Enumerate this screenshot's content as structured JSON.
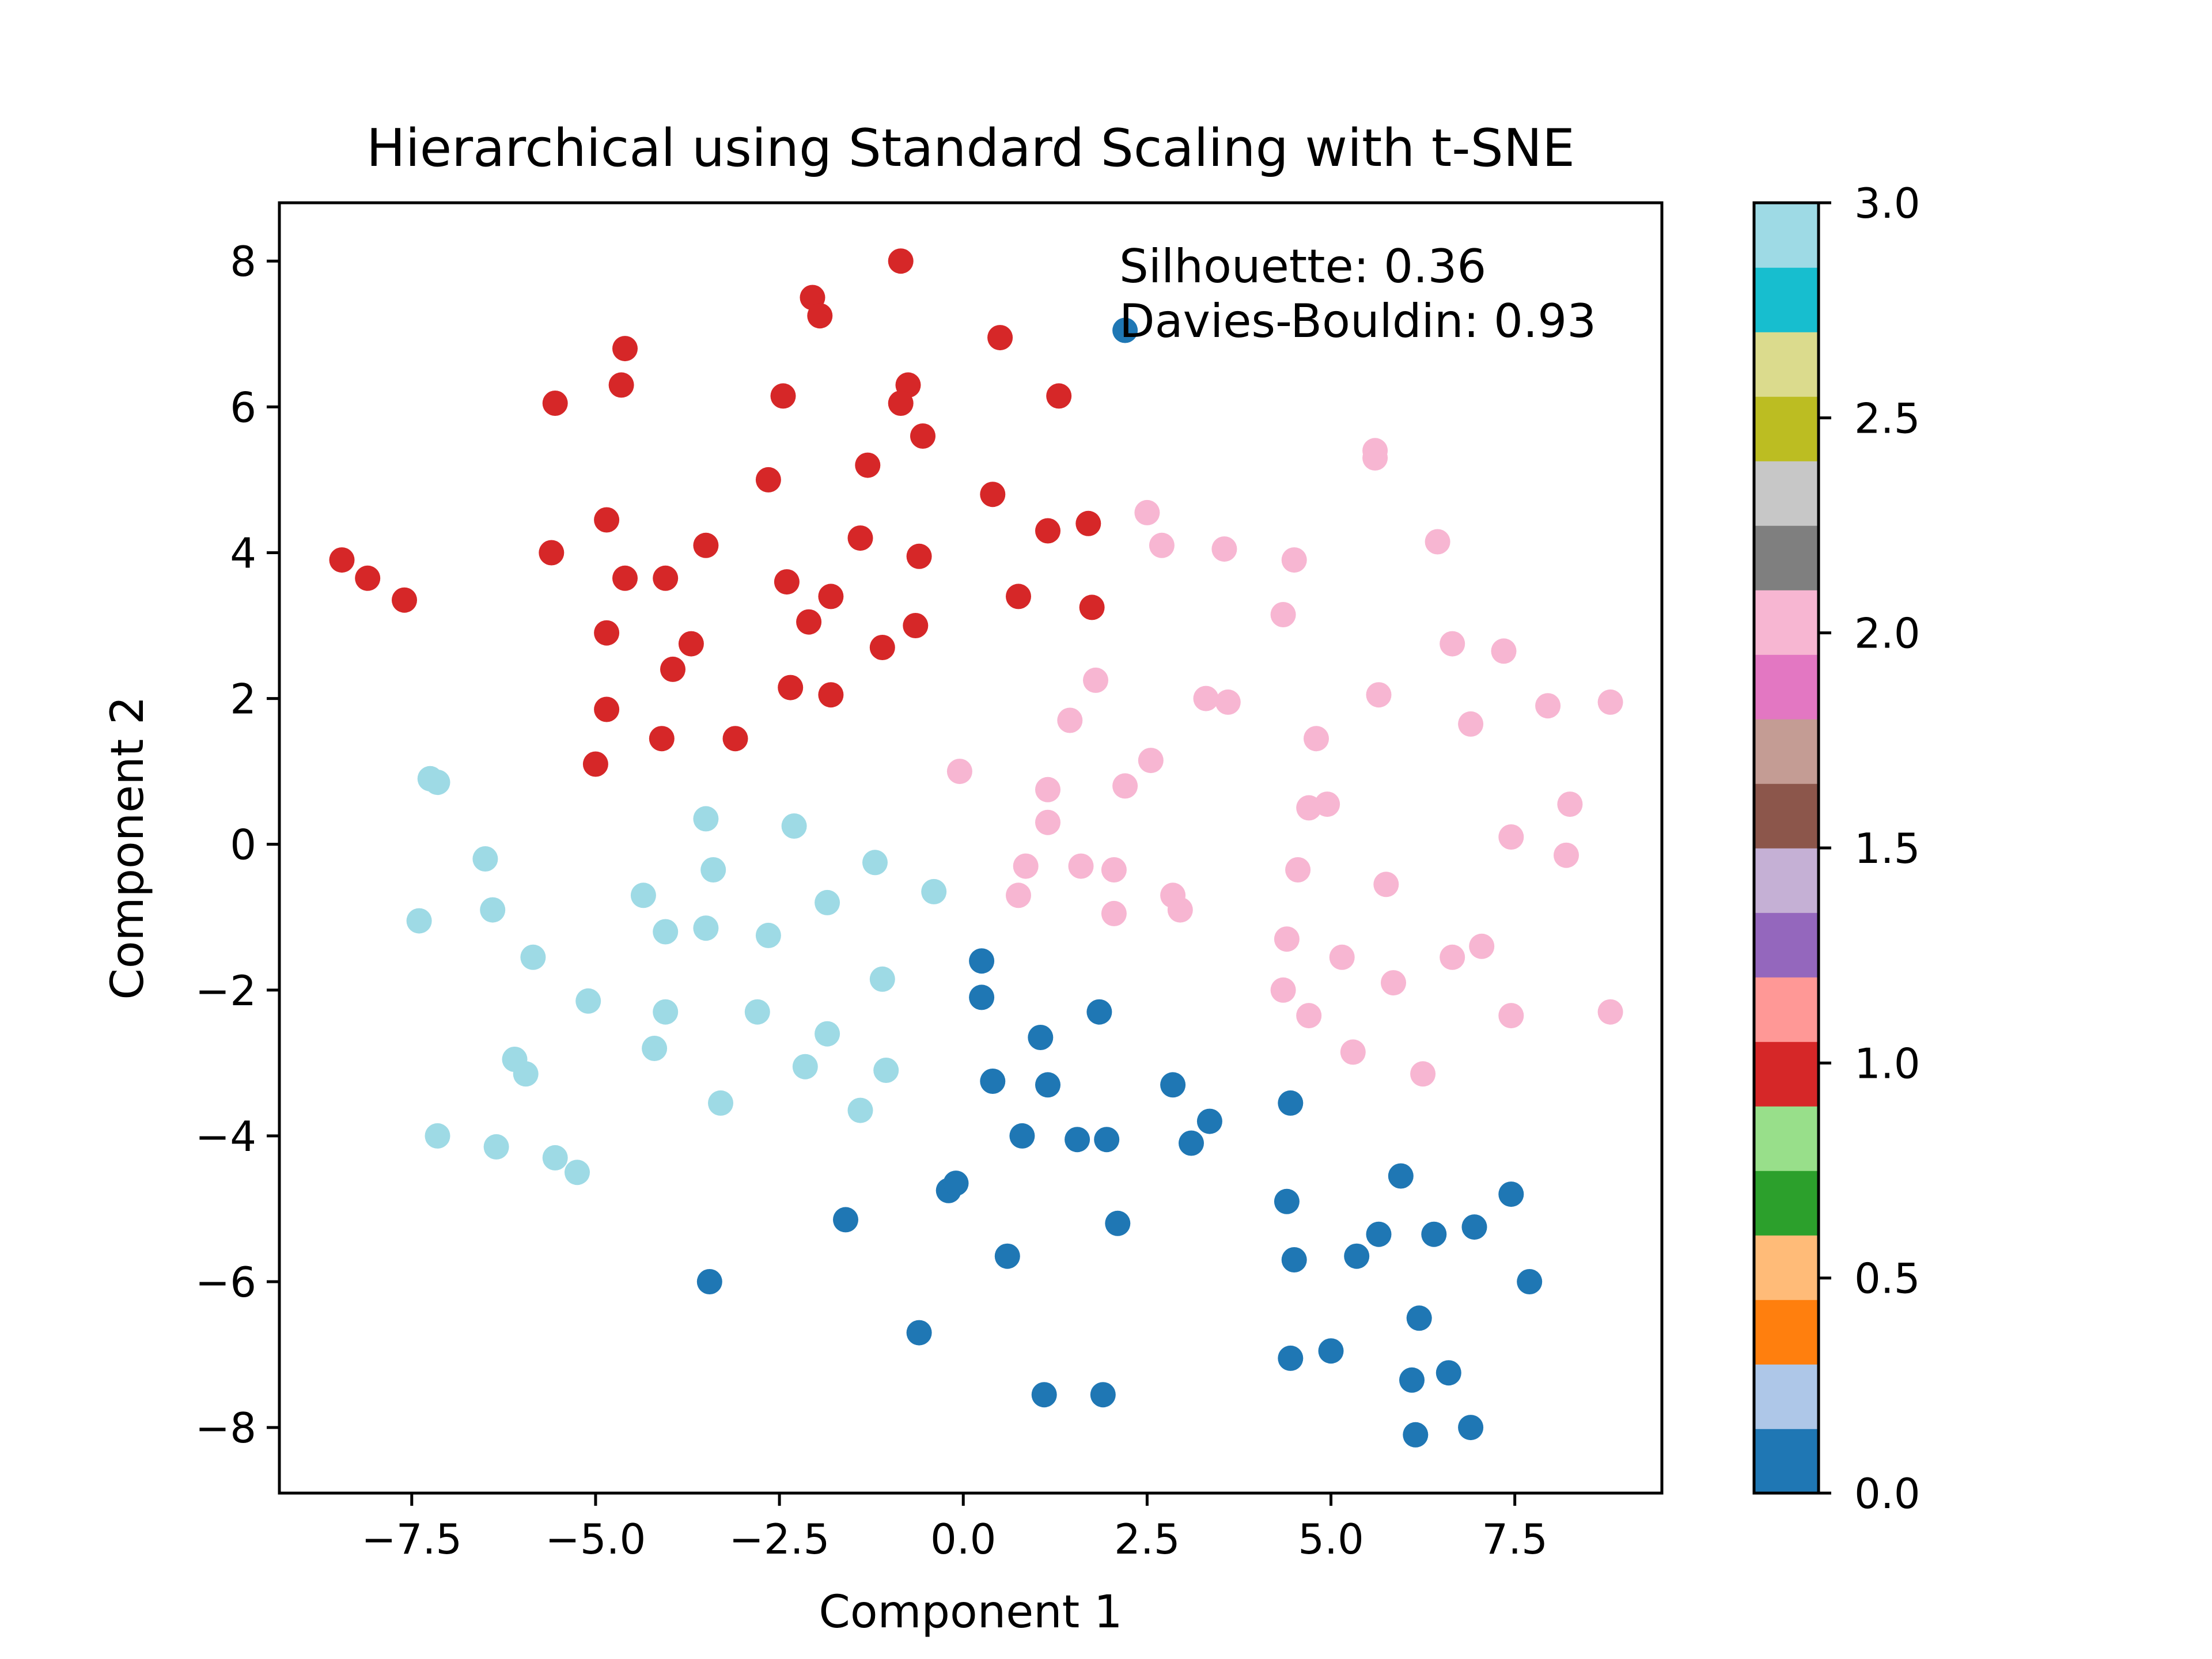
{
  "chart_data": {
    "type": "scatter",
    "title": "Hierarchical using Standard Scaling with t-SNE",
    "xlabel": "Component 1",
    "ylabel": "Component 2",
    "xlim": [
      -9.3,
      9.5
    ],
    "ylim": [
      -8.9,
      8.8
    ],
    "xticks": [
      -7.5,
      -5.0,
      -2.5,
      0.0,
      2.5,
      5.0,
      7.5
    ],
    "xtick_labels": [
      "−7.5",
      "−5.0",
      "−2.5",
      "0.0",
      "2.5",
      "5.0",
      "7.5"
    ],
    "yticks": [
      -8,
      -6,
      -4,
      -2,
      0,
      2,
      4,
      6,
      8
    ],
    "ytick_labels": [
      "−8",
      "−6",
      "−4",
      "−2",
      "0",
      "2",
      "4",
      "6",
      "8"
    ],
    "grid": false,
    "annotation_lines": [
      "Silhouette: 0.36",
      "Davies-Bouldin: 0.93"
    ],
    "colorbar": {
      "cmap": "tab20",
      "range": [
        0.0,
        3.0
      ],
      "ticks": [
        0.0,
        0.5,
        1.0,
        1.5,
        2.0,
        2.5,
        3.0
      ],
      "tick_labels": [
        "0.0",
        "0.5",
        "1.0",
        "1.5",
        "2.0",
        "2.5",
        "3.0"
      ],
      "colors": [
        "#1f77b4",
        "#aec7e8",
        "#ff7f0e",
        "#ffbb78",
        "#2ca02c",
        "#98df8a",
        "#d62728",
        "#ff9896",
        "#9467bd",
        "#c5b0d5",
        "#8c564b",
        "#c49c94",
        "#e377c2",
        "#f7b6d2",
        "#7f7f7f",
        "#c7c7c7",
        "#bcbd22",
        "#dbdb8d",
        "#17becf",
        "#9edae5"
      ]
    },
    "series": [
      {
        "cluster": 0,
        "color": "#1f77b4",
        "points": [
          [
            2.2,
            7.05
          ],
          [
            0.25,
            -1.6
          ],
          [
            0.25,
            -2.1
          ],
          [
            1.05,
            -2.65
          ],
          [
            1.85,
            -2.3
          ],
          [
            0.4,
            -3.25
          ],
          [
            1.15,
            -3.3
          ],
          [
            2.85,
            -3.3
          ],
          [
            0.8,
            -4.0
          ],
          [
            1.55,
            -4.05
          ],
          [
            1.95,
            -4.05
          ],
          [
            3.1,
            -4.1
          ],
          [
            3.35,
            -3.8
          ],
          [
            4.45,
            -3.55
          ],
          [
            -0.2,
            -4.75
          ],
          [
            -0.1,
            -4.65
          ],
          [
            -1.6,
            -5.15
          ],
          [
            2.1,
            -5.2
          ],
          [
            0.6,
            -5.65
          ],
          [
            4.4,
            -4.9
          ],
          [
            4.5,
            -5.7
          ],
          [
            5.95,
            -4.55
          ],
          [
            5.65,
            -5.35
          ],
          [
            5.35,
            -5.65
          ],
          [
            6.4,
            -5.35
          ],
          [
            6.95,
            -5.25
          ],
          [
            7.45,
            -4.8
          ],
          [
            -3.45,
            -6.0
          ],
          [
            -0.6,
            -6.7
          ],
          [
            7.7,
            -6.0
          ],
          [
            6.2,
            -6.5
          ],
          [
            4.45,
            -7.05
          ],
          [
            5.0,
            -6.95
          ],
          [
            6.1,
            -7.35
          ],
          [
            6.6,
            -7.25
          ],
          [
            1.1,
            -7.55
          ],
          [
            1.9,
            -7.55
          ],
          [
            6.15,
            -8.1
          ],
          [
            6.9,
            -8.0
          ]
        ]
      },
      {
        "cluster": 1,
        "color": "#d62728",
        "points": [
          [
            -0.85,
            8.0
          ],
          [
            -2.05,
            7.5
          ],
          [
            -1.95,
            7.25
          ],
          [
            0.5,
            6.95
          ],
          [
            -4.6,
            6.8
          ],
          [
            -4.65,
            6.3
          ],
          [
            -0.75,
            6.3
          ],
          [
            -2.45,
            6.15
          ],
          [
            -0.85,
            6.05
          ],
          [
            1.3,
            6.15
          ],
          [
            -5.55,
            6.05
          ],
          [
            -0.55,
            5.6
          ],
          [
            -1.3,
            5.2
          ],
          [
            -2.65,
            5.0
          ],
          [
            0.4,
            4.8
          ],
          [
            -4.85,
            4.45
          ],
          [
            1.15,
            4.3
          ],
          [
            1.7,
            4.4
          ],
          [
            -1.4,
            4.2
          ],
          [
            -3.5,
            4.1
          ],
          [
            -5.6,
            4.0
          ],
          [
            -0.6,
            3.95
          ],
          [
            -8.45,
            3.9
          ],
          [
            -8.1,
            3.65
          ],
          [
            -4.6,
            3.65
          ],
          [
            -4.05,
            3.65
          ],
          [
            -2.4,
            3.6
          ],
          [
            -7.6,
            3.35
          ],
          [
            -1.8,
            3.4
          ],
          [
            0.75,
            3.4
          ],
          [
            1.75,
            3.25
          ],
          [
            -4.85,
            2.9
          ],
          [
            -2.1,
            3.05
          ],
          [
            -0.65,
            3.0
          ],
          [
            -3.7,
            2.75
          ],
          [
            -1.1,
            2.7
          ],
          [
            -3.95,
            2.4
          ],
          [
            -2.35,
            2.15
          ],
          [
            -1.8,
            2.05
          ],
          [
            -4.85,
            1.85
          ],
          [
            -4.1,
            1.45
          ],
          [
            -3.1,
            1.45
          ],
          [
            -5.0,
            1.1
          ]
        ]
      },
      {
        "cluster": 2,
        "color": "#f7b6d2",
        "points": [
          [
            5.6,
            5.4
          ],
          [
            5.6,
            5.3
          ],
          [
            2.5,
            4.55
          ],
          [
            6.45,
            4.15
          ],
          [
            2.7,
            4.1
          ],
          [
            3.55,
            4.05
          ],
          [
            4.5,
            3.9
          ],
          [
            4.35,
            3.15
          ],
          [
            6.65,
            2.75
          ],
          [
            7.35,
            2.65
          ],
          [
            1.8,
            2.25
          ],
          [
            5.65,
            2.05
          ],
          [
            3.3,
            2.0
          ],
          [
            3.6,
            1.95
          ],
          [
            7.95,
            1.9
          ],
          [
            8.8,
            1.95
          ],
          [
            6.9,
            1.65
          ],
          [
            1.45,
            1.7
          ],
          [
            4.8,
            1.45
          ],
          [
            -0.05,
            1.0
          ],
          [
            2.55,
            1.15
          ],
          [
            1.15,
            0.75
          ],
          [
            2.2,
            0.8
          ],
          [
            4.95,
            0.55
          ],
          [
            4.7,
            0.5
          ],
          [
            8.25,
            0.55
          ],
          [
            1.15,
            0.3
          ],
          [
            7.45,
            0.1
          ],
          [
            8.2,
            -0.15
          ],
          [
            0.85,
            -0.3
          ],
          [
            1.6,
            -0.3
          ],
          [
            2.05,
            -0.35
          ],
          [
            4.55,
            -0.35
          ],
          [
            5.75,
            -0.55
          ],
          [
            0.75,
            -0.7
          ],
          [
            2.85,
            -0.7
          ],
          [
            2.95,
            -0.9
          ],
          [
            2.05,
            -0.95
          ],
          [
            4.4,
            -1.3
          ],
          [
            5.15,
            -1.55
          ],
          [
            6.65,
            -1.55
          ],
          [
            7.05,
            -1.4
          ],
          [
            5.85,
            -1.9
          ],
          [
            4.35,
            -2.0
          ],
          [
            4.7,
            -2.35
          ],
          [
            7.45,
            -2.35
          ],
          [
            8.8,
            -2.3
          ],
          [
            5.3,
            -2.85
          ],
          [
            6.25,
            -3.15
          ]
        ]
      },
      {
        "cluster": 3,
        "color": "#9edae5",
        "points": [
          [
            -7.15,
            0.85
          ],
          [
            -7.25,
            0.9
          ],
          [
            -3.5,
            0.35
          ],
          [
            -2.3,
            0.25
          ],
          [
            -6.5,
            -0.2
          ],
          [
            -3.4,
            -0.35
          ],
          [
            -1.2,
            -0.25
          ],
          [
            -0.4,
            -0.65
          ],
          [
            -6.4,
            -0.9
          ],
          [
            -4.35,
            -0.7
          ],
          [
            -1.85,
            -0.8
          ],
          [
            -7.4,
            -1.05
          ],
          [
            -4.05,
            -1.2
          ],
          [
            -3.5,
            -1.15
          ],
          [
            -2.65,
            -1.25
          ],
          [
            -5.85,
            -1.55
          ],
          [
            -1.1,
            -1.85
          ],
          [
            -5.1,
            -2.15
          ],
          [
            -4.05,
            -2.3
          ],
          [
            -2.8,
            -2.3
          ],
          [
            -1.85,
            -2.6
          ],
          [
            -4.2,
            -2.8
          ],
          [
            -6.1,
            -2.95
          ],
          [
            -5.95,
            -3.15
          ],
          [
            -2.15,
            -3.05
          ],
          [
            -1.05,
            -3.1
          ],
          [
            -3.3,
            -3.55
          ],
          [
            -1.4,
            -3.65
          ],
          [
            -7.15,
            -4.0
          ],
          [
            -6.35,
            -4.15
          ],
          [
            -5.55,
            -4.3
          ],
          [
            -5.25,
            -4.5
          ]
        ]
      }
    ]
  }
}
